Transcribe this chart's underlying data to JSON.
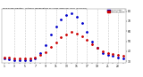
{
  "hours": [
    1,
    2,
    3,
    4,
    5,
    6,
    7,
    8,
    9,
    10,
    11,
    12,
    13,
    14,
    15,
    16,
    17,
    18,
    19,
    20,
    21,
    22,
    23,
    24
  ],
  "temp": [
    34,
    34,
    33,
    33,
    33,
    33,
    34,
    36,
    39,
    44,
    49,
    54,
    57,
    59,
    58,
    55,
    51,
    47,
    43,
    40,
    38,
    37,
    36,
    35
  ],
  "thsw": [
    33,
    32,
    31,
    31,
    31,
    31,
    33,
    38,
    46,
    57,
    65,
    72,
    76,
    78,
    74,
    68,
    59,
    50,
    43,
    38,
    36,
    35,
    34,
    33
  ],
  "temp_color": "#cc0000",
  "thsw_color": "#0000cc",
  "bg_color": "#ffffff",
  "grid_color": "#bbbbbb",
  "ylim": [
    28,
    82
  ],
  "ytick_vals": [
    30,
    40,
    50,
    60,
    70,
    80
  ],
  "ytick_labels": [
    "30",
    "40",
    "50",
    "60",
    "70",
    "80"
  ],
  "grid_hours": [
    3,
    5,
    7,
    9,
    11,
    13,
    15,
    17,
    19,
    21,
    23
  ],
  "legend_blue": "THSW Index",
  "legend_red": "Outdoor Temp"
}
